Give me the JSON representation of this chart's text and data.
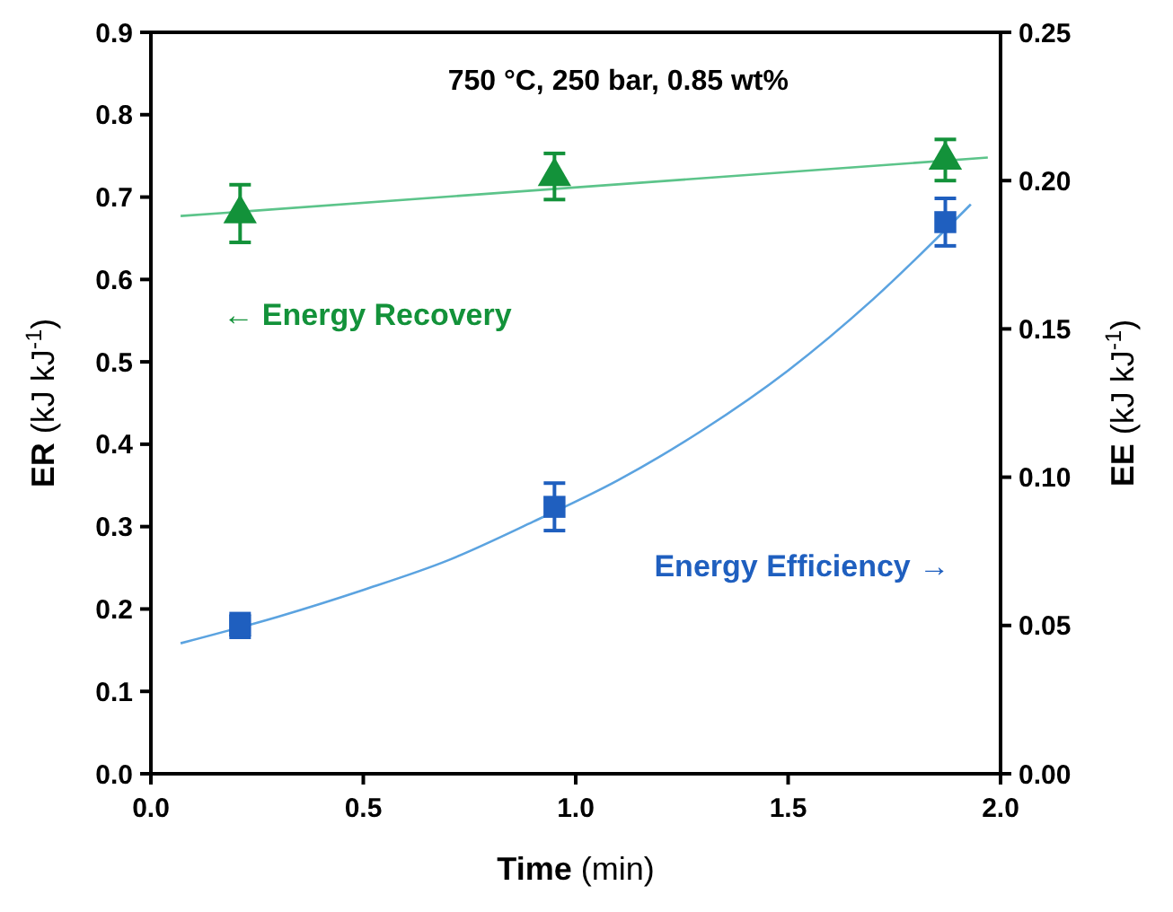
{
  "chart_data": {
    "type": "scatter",
    "xlabel": "Time (min)",
    "ylabel": "ER (kJ kJ$^{-1}$)",
    "y2label": "EE (kJ kJ$^{-1}$)",
    "xlim": [
      0,
      2
    ],
    "xticks": [
      {
        "value": 0,
        "label": "0.0"
      },
      {
        "value": 0.5,
        "label": "0.5"
      },
      {
        "value": 1,
        "label": "1.0"
      },
      {
        "value": 1.5,
        "label": "1.5"
      },
      {
        "value": 2,
        "label": "2.0"
      }
    ],
    "ylim": [
      0,
      0.9
    ],
    "yticks": [
      {
        "value": 0,
        "label": "0.0"
      },
      {
        "value": 0.1,
        "label": "0.1"
      },
      {
        "value": 0.2,
        "label": "0.2"
      },
      {
        "value": 0.3,
        "label": "0.3"
      },
      {
        "value": 0.4,
        "label": "0.4"
      },
      {
        "value": 0.5,
        "label": "0.5"
      },
      {
        "value": 0.6,
        "label": "0.6"
      },
      {
        "value": 0.7,
        "label": "0.7"
      },
      {
        "value": 0.8,
        "label": "0.8"
      },
      {
        "value": 0.9,
        "label": "0.9"
      }
    ],
    "y2lim": [
      0,
      0.25
    ],
    "y2ticks": [
      {
        "value": 0,
        "label": "0.00"
      },
      {
        "value": 0.05,
        "label": "0.05"
      },
      {
        "value": 0.1,
        "label": "0.10"
      },
      {
        "value": 0.15,
        "label": "0.15"
      },
      {
        "value": 0.2,
        "label": "0.20"
      },
      {
        "value": 0.25,
        "label": "0.25"
      }
    ],
    "annotations": [
      "750 °C, 250 bar, 0.85 wt%"
    ],
    "grid": false,
    "series": [
      {
        "type": "line",
        "color": "#5cc48a",
        "marker": "none",
        "x": [
          0.07,
          1.97
        ],
        "values": [
          0.677,
          0.748
        ]
      },
      {
        "type": "line",
        "color": "#5ba3e0",
        "marker": "none",
        "axis": "y2",
        "x": [
          0.07,
          0.3,
          0.5,
          0.7,
          0.9,
          1.1,
          1.3,
          1.5,
          1.7,
          1.93
        ],
        "values": [
          0.044,
          0.053,
          0.062,
          0.072,
          0.085,
          0.099,
          0.116,
          0.136,
          0.16,
          0.192
        ]
      },
      {
        "name": "← Energy Recovery",
        "color": "#13923a",
        "marker": "triangle",
        "x": [
          0.21,
          0.95,
          1.87
        ],
        "values": [
          0.68,
          0.725,
          0.745
        ],
        "errors": [
          0.035,
          0.028,
          0.025
        ]
      },
      {
        "name": "Energy Efficiency →",
        "color": "#1f5fbf",
        "marker": "square",
        "axis": "y2",
        "x": [
          0.21,
          0.95,
          1.87
        ],
        "values": [
          0.05,
          0.09,
          0.186
        ],
        "errors": [
          0.004,
          0.008,
          0.008
        ]
      }
    ]
  }
}
